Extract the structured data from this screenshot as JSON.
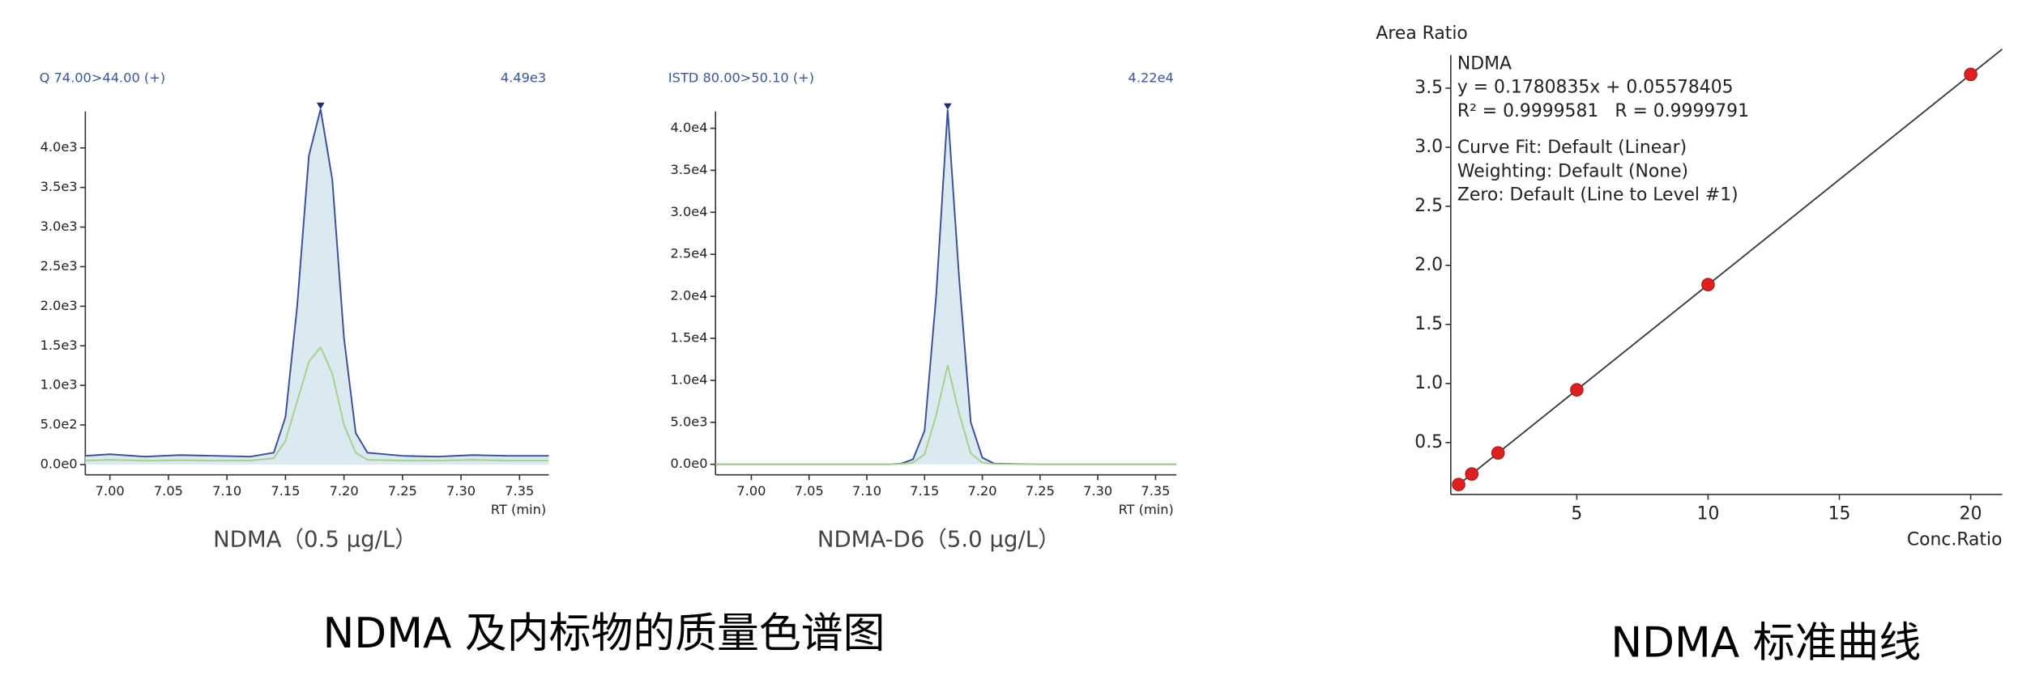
{
  "captions": [
    "NDMA 及内标物的质量色谱图",
    "NDMA 标准曲线"
  ],
  "chart_data": [
    {
      "type": "line",
      "header_left": "Q 74.00>44.00 (+)",
      "header_right": "4.49e3",
      "x_label": "RT (min)",
      "caption": "NDMA（0.5 μg/L）",
      "area_fill": "#dbe9f1",
      "x": [
        6.979,
        7.0,
        7.03,
        7.06,
        7.09,
        7.12,
        7.14,
        7.15,
        7.16,
        7.17,
        7.18,
        7.19,
        7.2,
        7.21,
        7.22,
        7.25,
        7.28,
        7.31,
        7.34,
        7.375
      ],
      "series": [
        {
          "color": "#3a4f9a",
          "values": [
            110,
            130,
            100,
            120,
            110,
            100,
            150,
            600,
            2000,
            3900,
            4490,
            3600,
            1600,
            400,
            150,
            110,
            100,
            120,
            110,
            110
          ]
        },
        {
          "color": "#a8d08d",
          "values": [
            50,
            60,
            50,
            55,
            50,
            50,
            80,
            300,
            800,
            1300,
            1480,
            1150,
            500,
            150,
            60,
            50,
            50,
            60,
            50,
            50
          ]
        }
      ],
      "xlim": [
        6.979,
        7.375
      ],
      "ylim": [
        -130,
        4460
      ],
      "xticks": [
        {
          "value": 7.0,
          "label": "7.00"
        },
        {
          "value": 7.05,
          "label": "7.05"
        },
        {
          "value": 7.1,
          "label": "7.10"
        },
        {
          "value": 7.15,
          "label": "7.15"
        },
        {
          "value": 7.2,
          "label": "7.20"
        },
        {
          "value": 7.25,
          "label": "7.25"
        },
        {
          "value": 7.3,
          "label": "7.30"
        },
        {
          "value": 7.35,
          "label": "7.35"
        }
      ],
      "yticks": [
        {
          "value": 0,
          "label": "0.0e0"
        },
        {
          "value": 500,
          "label": "5.0e2"
        },
        {
          "value": 1000,
          "label": "1.0e3"
        },
        {
          "value": 1500,
          "label": "1.5e3"
        },
        {
          "value": 2000,
          "label": "2.0e3"
        },
        {
          "value": 2500,
          "label": "2.5e3"
        },
        {
          "value": 3000,
          "label": "3.0e3"
        },
        {
          "value": 3500,
          "label": "3.5e3"
        },
        {
          "value": 4000,
          "label": "4.0e3"
        }
      ]
    },
    {
      "type": "line",
      "header_left": "ISTD 80.00>50.10 (+)",
      "header_right": "4.22e4",
      "x_label": "RT (min)",
      "caption": "NDMA-D6（5.0 μg/L）",
      "area_fill": "#dbe9f1",
      "x": [
        6.969,
        7.05,
        7.12,
        7.13,
        7.14,
        7.15,
        7.16,
        7.17,
        7.18,
        7.19,
        7.2,
        7.21,
        7.25,
        7.3,
        7.368
      ],
      "series": [
        {
          "color": "#3a4f9a",
          "values": [
            0,
            0,
            0,
            100,
            600,
            4000,
            20000,
            42200,
            22000,
            5000,
            800,
            100,
            0,
            0,
            0
          ]
        },
        {
          "color": "#a8d08d",
          "values": [
            0,
            0,
            0,
            50,
            200,
            1200,
            5800,
            11800,
            6000,
            1300,
            200,
            40,
            0,
            0,
            0
          ]
        }
      ],
      "xlim": [
        6.969,
        7.368
      ],
      "ylim": [
        -1250,
        42000
      ],
      "xticks": [
        {
          "value": 7.0,
          "label": "7.00"
        },
        {
          "value": 7.05,
          "label": "7.05"
        },
        {
          "value": 7.1,
          "label": "7.10"
        },
        {
          "value": 7.15,
          "label": "7.15"
        },
        {
          "value": 7.2,
          "label": "7.20"
        },
        {
          "value": 7.25,
          "label": "7.25"
        },
        {
          "value": 7.3,
          "label": "7.30"
        },
        {
          "value": 7.35,
          "label": "7.35"
        }
      ],
      "yticks": [
        {
          "value": 0,
          "label": "0.0e0"
        },
        {
          "value": 5000,
          "label": "5.0e3"
        },
        {
          "value": 10000,
          "label": "1.0e4"
        },
        {
          "value": 15000,
          "label": "1.5e4"
        },
        {
          "value": 20000,
          "label": "2.0e4"
        },
        {
          "value": 25000,
          "label": "2.5e4"
        },
        {
          "value": 30000,
          "label": "3.0e4"
        },
        {
          "value": 35000,
          "label": "3.5e4"
        },
        {
          "value": 40000,
          "label": "4.0e4"
        }
      ]
    },
    {
      "type": "scatter",
      "y_label": "Area Ratio",
      "x_label": "Conc.Ratio",
      "annotations": [
        "NDMA",
        "y = 0.1780835x + 0.05578405",
        "R² = 0.9999581",
        "R = 0.9999791",
        "Curve Fit: Default (Linear)",
        "Weighting: Default (None)",
        "Zero: Default (Line to Level #1)"
      ],
      "x": [
        0.5,
        1,
        2,
        5,
        10,
        20
      ],
      "values": [
        0.145,
        0.234,
        0.412,
        0.946,
        1.837,
        3.617
      ],
      "color": "#e02020",
      "fit_line": {
        "color": "#333333",
        "x": [
          0.3,
          21.2
        ],
        "y": [
          0.109,
          3.83
        ]
      },
      "xlim": [
        0.2,
        21.2
      ],
      "ylim": [
        0.06,
        3.78
      ],
      "xticks": [
        5,
        10,
        15,
        20
      ],
      "yticks": [
        0.5,
        {
          "value": 1.0,
          "label": "1.0"
        },
        1.5,
        {
          "value": 2.0,
          "label": "2.0"
        },
        2.5,
        {
          "value": 3.0,
          "label": "3.0"
        },
        3.5
      ]
    }
  ]
}
